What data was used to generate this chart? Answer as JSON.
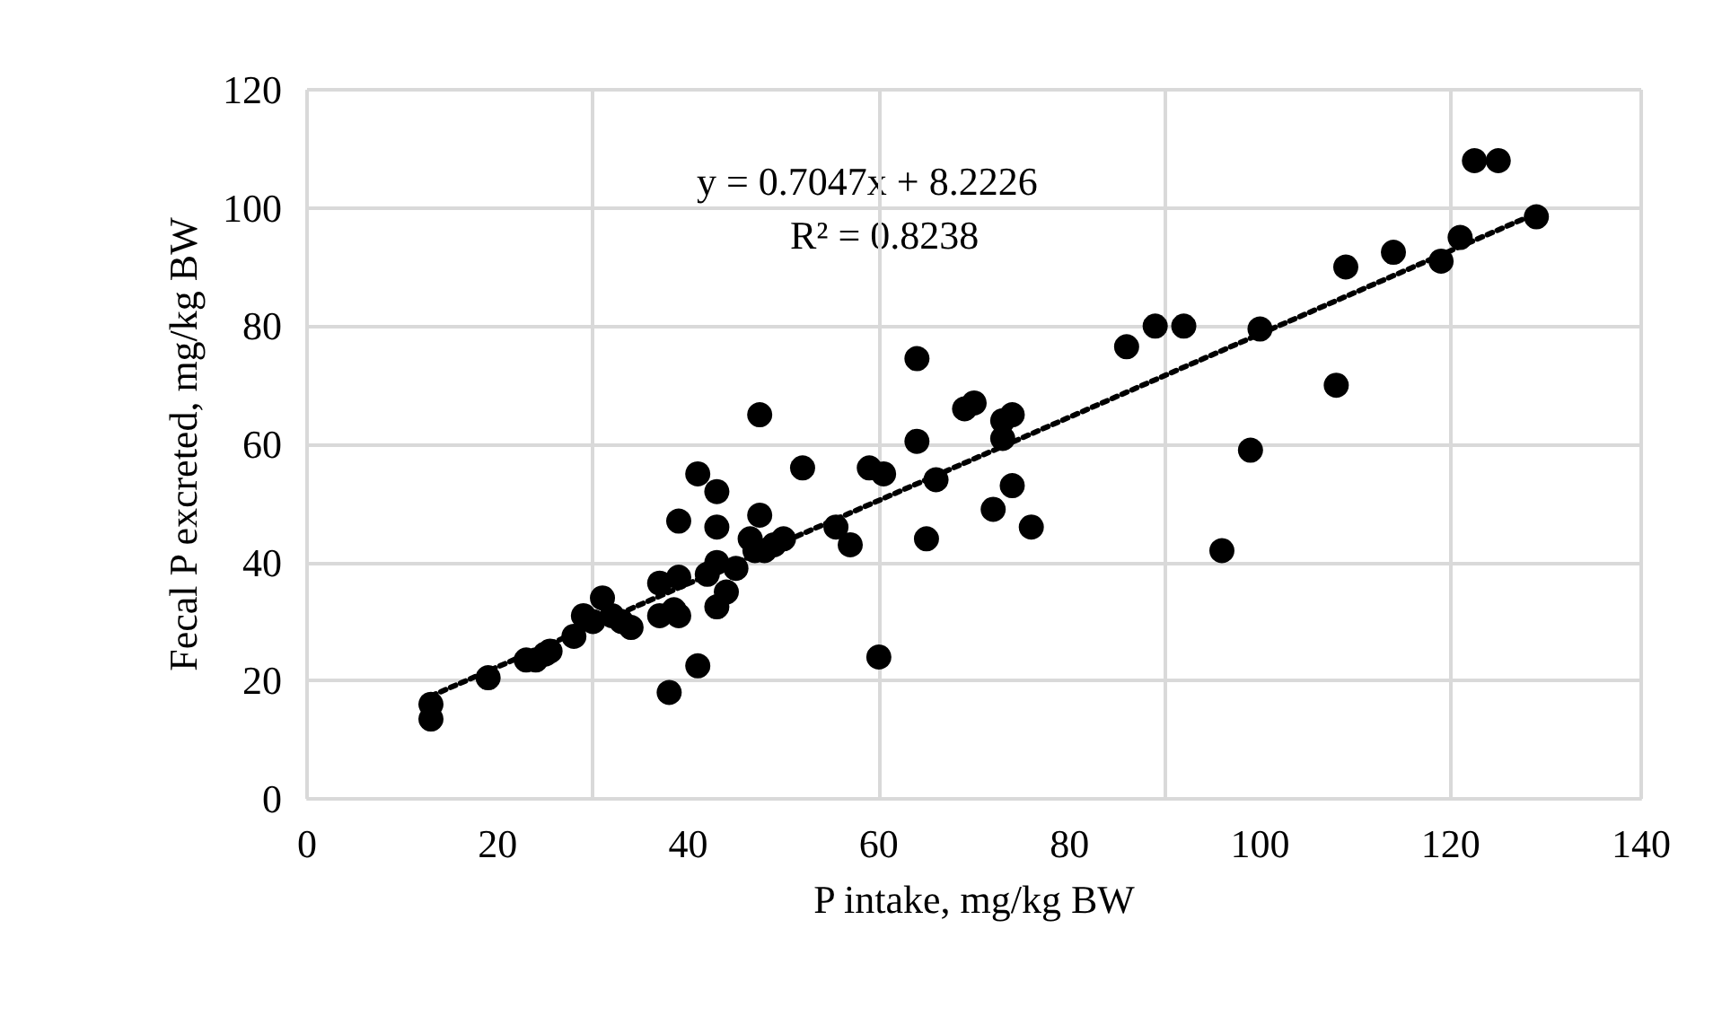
{
  "chart_data": {
    "type": "scatter",
    "xlabel": "P intake, mg/kg BW",
    "ylabel": "Fecal P excreted, mg/kg BW",
    "xlim": [
      0,
      140
    ],
    "xticks": [
      0,
      20,
      40,
      60,
      80,
      100,
      120,
      140
    ],
    "ylim": [
      0,
      120
    ],
    "yticks": [
      0,
      20,
      40,
      60,
      80,
      100,
      120
    ],
    "grid": true,
    "marker": "circle",
    "annotations": [
      "y = 0.7047x + 8.2226",
      "R² = 0.8238"
    ],
    "series": [
      {
        "color": "#000000",
        "x": [
          13,
          13,
          19,
          23,
          24,
          25,
          25.5,
          28,
          29,
          30,
          31,
          32,
          33,
          34,
          37,
          37,
          38,
          38.5,
          39,
          39,
          39,
          41,
          41,
          42,
          43,
          43,
          43,
          43,
          44,
          45,
          46.5,
          47,
          47.5,
          47.5,
          48,
          49,
          50,
          52,
          55.5,
          57,
          59,
          60,
          60.5,
          64,
          64,
          65,
          66,
          69,
          70,
          72,
          73,
          73,
          74,
          74,
          76,
          86,
          89,
          92,
          96,
          99,
          100,
          108,
          109,
          114,
          119,
          121,
          122.5,
          125,
          129
        ],
        "values": [
          16,
          13.5,
          20.5,
          23.5,
          23.5,
          24.5,
          25,
          27.5,
          31,
          30,
          34,
          31,
          30,
          29,
          36.5,
          31,
          18,
          32,
          31,
          37.5,
          47,
          22.5,
          55,
          38,
          52,
          46,
          40,
          32.5,
          35,
          39,
          44,
          42,
          65,
          48,
          42,
          43,
          44,
          56,
          46,
          43,
          56,
          24,
          55,
          60.5,
          74.5,
          44,
          54,
          66,
          67,
          49,
          61,
          64,
          65,
          53,
          46,
          76.5,
          80,
          80,
          42,
          59,
          79.5,
          70,
          90,
          92.5,
          91,
          95,
          108,
          108,
          98.5
        ]
      },
      {
        "type": "line",
        "color": "#000000",
        "line_style": "dotted",
        "marker": "none",
        "x": [
          13,
          129
        ],
        "values": [
          17.4,
          99.1
        ]
      }
    ]
  }
}
